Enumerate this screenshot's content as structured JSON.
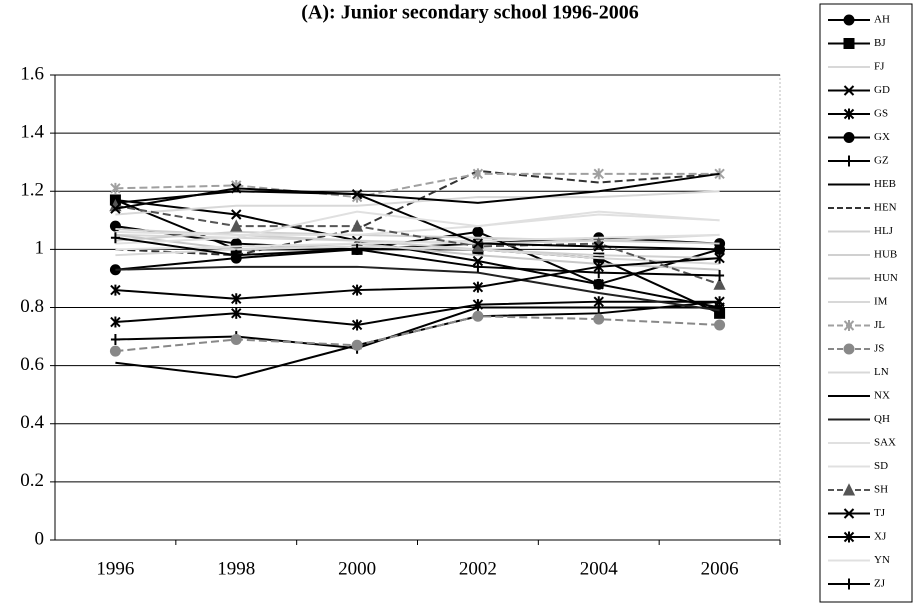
{
  "chart_data": {
    "type": "line",
    "title": "(A): Junior secondary school 1996-2006",
    "categories": [
      "1996",
      "1998",
      "2000",
      "2002",
      "2004",
      "2006"
    ],
    "ylim": [
      0,
      1.6
    ],
    "yticks": [
      0,
      0.2,
      0.4,
      0.6,
      0.8,
      1,
      1.2,
      1.4,
      1.6
    ],
    "grid": true,
    "series": [
      {
        "name": "AH",
        "color": "#000000",
        "marker": "circle",
        "values": [
          0.93,
          0.97,
          1.0,
          1.02,
          1.04,
          1.02
        ]
      },
      {
        "name": "BJ",
        "color": "#000000",
        "marker": "square",
        "values": [
          1.17,
          1.0,
          1.0,
          1.0,
          0.97,
          0.78
        ]
      },
      {
        "name": "FJ",
        "color": "#d8d8d8",
        "values": [
          1.05,
          1.04,
          1.03,
          1.02,
          1.03,
          1.05
        ]
      },
      {
        "name": "GD",
        "color": "#000000",
        "marker": "x",
        "values": [
          1.17,
          1.12,
          1.03,
          0.96,
          0.88,
          0.8
        ]
      },
      {
        "name": "GS",
        "color": "#000000",
        "marker": "star",
        "values": [
          0.75,
          0.78,
          0.74,
          0.81,
          0.82,
          0.82
        ]
      },
      {
        "name": "GX",
        "color": "#000000",
        "marker": "circle",
        "values": [
          1.08,
          1.02,
          1.0,
          1.06,
          0.88,
          1.0
        ]
      },
      {
        "name": "GZ",
        "color": "#000000",
        "marker": "plus",
        "values": [
          0.69,
          0.7,
          0.66,
          0.8,
          0.8,
          0.8
        ]
      },
      {
        "name": "HEB",
        "color": "#000000",
        "values": [
          0.61,
          0.56,
          0.67,
          0.77,
          0.78,
          0.82
        ]
      },
      {
        "name": "HEN",
        "color": "#333333",
        "dash": true,
        "values": [
          1.0,
          0.98,
          1.07,
          1.27,
          1.23,
          1.26
        ]
      },
      {
        "name": "HLJ",
        "color": "#d0d0d0",
        "values": [
          1.07,
          1.05,
          1.03,
          1.0,
          0.98,
          0.97
        ]
      },
      {
        "name": "HUB",
        "color": "#d0d0d0",
        "values": [
          1.03,
          1.06,
          1.05,
          1.04,
          1.03,
          1.02
        ]
      },
      {
        "name": "HUN",
        "color": "#c8c8c8",
        "values": [
          1.05,
          1.0,
          1.02,
          0.98,
          0.95,
          0.93
        ]
      },
      {
        "name": "IM",
        "color": "#d8d8d8",
        "values": [
          0.98,
          1.0,
          1.01,
          1.0,
          0.97,
          0.95
        ]
      },
      {
        "name": "JL",
        "color": "#a0a0a0",
        "marker": "star",
        "dash": true,
        "values": [
          1.21,
          1.22,
          1.18,
          1.26,
          1.26,
          1.26
        ]
      },
      {
        "name": "JS",
        "color": "#888888",
        "marker": "circle",
        "dash": true,
        "values": [
          0.65,
          0.69,
          0.67,
          0.77,
          0.76,
          0.74
        ]
      },
      {
        "name": "LN",
        "color": "#d8d8d8",
        "values": [
          1.12,
          1.15,
          1.15,
          1.18,
          1.18,
          1.2
        ]
      },
      {
        "name": "NX",
        "color": "#000000",
        "values": [
          1.16,
          1.2,
          1.19,
          1.16,
          1.2,
          1.26
        ]
      },
      {
        "name": "QH",
        "color": "#222222",
        "values": [
          0.93,
          0.94,
          0.94,
          0.92,
          0.85,
          0.79
        ]
      },
      {
        "name": "SAX",
        "color": "#e0e0e0",
        "values": [
          1.06,
          1.05,
          1.05,
          1.08,
          1.12,
          1.1
        ]
      },
      {
        "name": "SD",
        "color": "#e0e0e0",
        "values": [
          1.0,
          1.01,
          1.02,
          1.03,
          1.04,
          1.05
        ]
      },
      {
        "name": "SH",
        "color": "#555555",
        "marker": "triangle",
        "dash": true,
        "values": [
          1.15,
          1.08,
          1.08,
          1.01,
          1.02,
          0.88
        ]
      },
      {
        "name": "TJ",
        "color": "#000000",
        "marker": "x",
        "values": [
          1.14,
          1.21,
          1.19,
          1.02,
          1.01,
          1.0
        ]
      },
      {
        "name": "XJ",
        "color": "#000000",
        "marker": "star",
        "values": [
          0.86,
          0.83,
          0.86,
          0.87,
          0.94,
          0.97
        ]
      },
      {
        "name": "YN",
        "color": "#e0e0e0",
        "values": [
          1.02,
          1.04,
          1.13,
          1.08,
          1.13,
          1.1
        ]
      },
      {
        "name": "ZJ",
        "color": "#000000",
        "marker": "plus",
        "values": [
          1.04,
          0.98,
          1.0,
          0.94,
          0.92,
          0.91
        ]
      }
    ]
  }
}
